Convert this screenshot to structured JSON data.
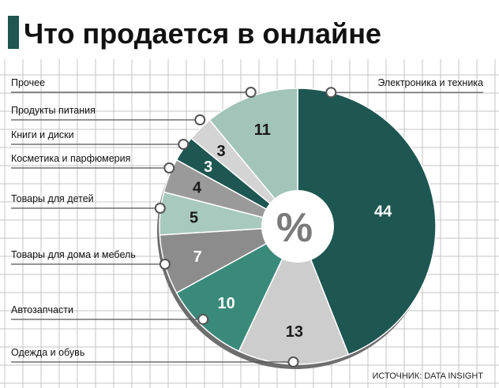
{
  "chart_data": {
    "type": "pie",
    "title": "Что продается в онлайне",
    "unit": "%",
    "source": "ИСТОЧНИК: DATA INSIGHT",
    "categories": [
      "Электроника и техника",
      "Одежда и обувь",
      "Автозапчасти",
      "Товары для дома и мебель",
      "Товары для детей",
      "Косметика и парфюмерия",
      "Книги и диски",
      "Продукты питания",
      "Прочее"
    ],
    "values": [
      44,
      13,
      10,
      7,
      5,
      4,
      3,
      3,
      11
    ],
    "colors": [
      "#1e5651",
      "#cdcdcd",
      "#3a8a7a",
      "#8c8c8c",
      "#a8c9bd",
      "#9a9a9a",
      "#1e5651",
      "#d4d4d4",
      "#a3c4b8"
    ],
    "legend": "left",
    "grid": true
  }
}
